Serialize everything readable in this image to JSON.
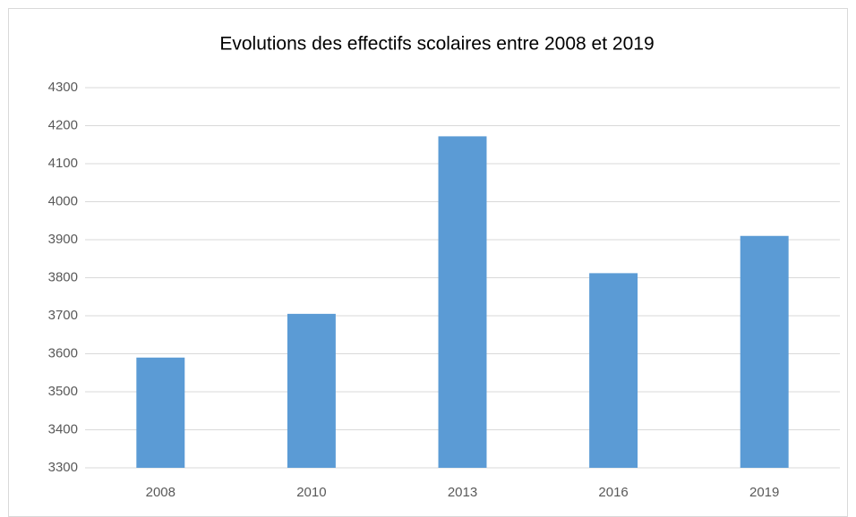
{
  "chart_data": {
    "type": "bar",
    "title": "Evolutions des effectifs scolaires entre 2008 et 2019",
    "categories": [
      "2008",
      "2010",
      "2013",
      "2016",
      "2019"
    ],
    "values": [
      3590,
      3705,
      4172,
      3812,
      3910
    ],
    "color": "#5b9bd5",
    "ylim": [
      3300,
      4300
    ],
    "yticks": [
      3300,
      3400,
      3500,
      3600,
      3700,
      3800,
      3900,
      4000,
      4100,
      4200,
      4300
    ],
    "grid": true
  }
}
